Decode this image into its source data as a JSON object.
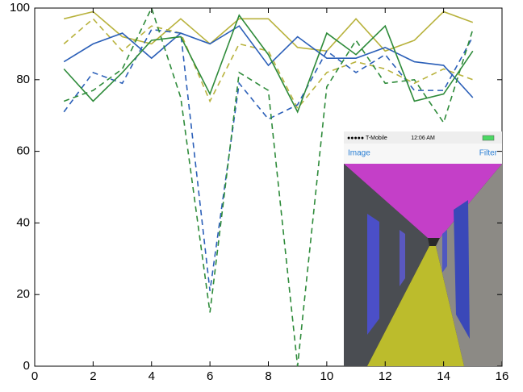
{
  "chart_data": {
    "type": "line",
    "x": [
      1,
      2,
      3,
      4,
      5,
      6,
      7,
      8,
      9,
      10,
      11,
      12,
      13,
      14,
      15
    ],
    "series": [
      {
        "color": "#b8b23c",
        "linestyle": "solid",
        "values": [
          97,
          99,
          92,
          90,
          97,
          90,
          97,
          97,
          89,
          88,
          97,
          88,
          91,
          99,
          96
        ]
      },
      {
        "color": "#b8b23c",
        "linestyle": "dashed",
        "values": [
          90,
          97,
          88,
          95,
          93,
          74,
          90,
          88,
          72,
          82,
          85,
          83,
          79,
          83,
          80
        ]
      },
      {
        "color": "#2b5fb8",
        "linestyle": "solid",
        "values": [
          85,
          90,
          93,
          86,
          93,
          90,
          95,
          84,
          92,
          86,
          86,
          89,
          85,
          84,
          75
        ]
      },
      {
        "color": "#2b5fb8",
        "linestyle": "dashed",
        "values": [
          71,
          82,
          79,
          94,
          93,
          21,
          79,
          69,
          73,
          88,
          82,
          87,
          77,
          77,
          92
        ]
      },
      {
        "color": "#2e8b3a",
        "linestyle": "solid",
        "values": [
          83,
          74,
          82,
          91,
          92,
          76,
          98,
          87,
          71,
          93,
          87,
          95,
          74,
          76,
          88
        ]
      },
      {
        "color": "#2e8b3a",
        "linestyle": "dashed",
        "values": [
          74,
          77,
          83,
          100,
          75,
          15,
          82,
          77,
          0,
          78,
          91,
          79,
          80,
          68,
          94
        ]
      }
    ],
    "xlim": [
      0,
      16
    ],
    "xticks": [
      0,
      2,
      4,
      6,
      8,
      10,
      12,
      14,
      16
    ],
    "ylim": [
      0,
      100
    ],
    "yticks": [
      0,
      20,
      40,
      60,
      80,
      100
    ]
  },
  "inset": {
    "carrier": "●●●●● T-Mobile",
    "time": "12:06 AM",
    "left_button": "Image",
    "right_button": "Filter"
  }
}
